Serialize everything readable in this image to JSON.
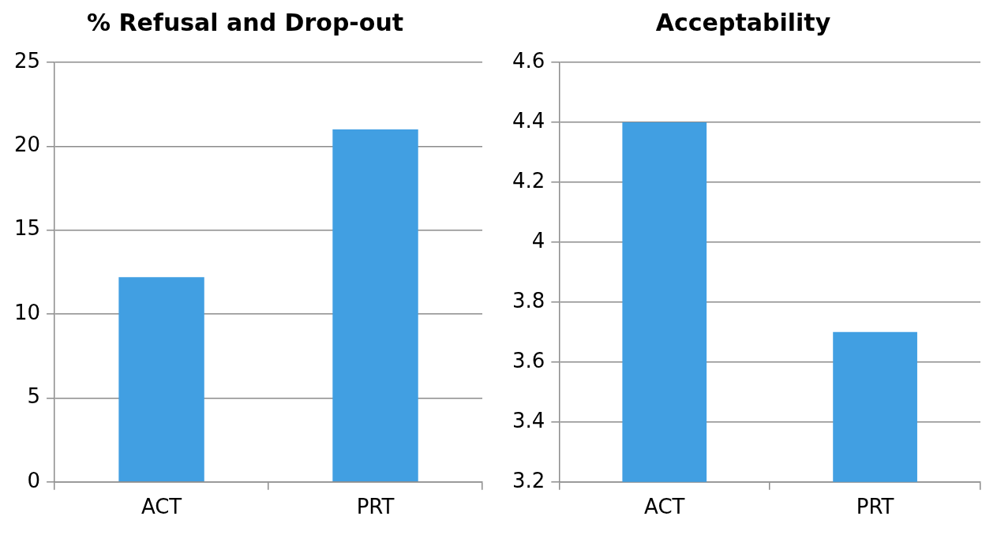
{
  "chart_data": [
    {
      "type": "bar",
      "title": "% Refusal and Drop-out",
      "categories": [
        "ACT",
        "PRT"
      ],
      "values": [
        12.2,
        21
      ],
      "color": "#419fe2",
      "ylim": [
        0,
        25
      ],
      "yticks": [
        0,
        5,
        10,
        15,
        20,
        25
      ],
      "grid": "y"
    },
    {
      "type": "bar",
      "title": "Acceptability",
      "categories": [
        "ACT",
        "PRT"
      ],
      "values": [
        4.4,
        3.7
      ],
      "color": "#419fe2",
      "ylim": [
        3.2,
        4.6
      ],
      "yticks": [
        3.2,
        3.4,
        3.6,
        3.8,
        4,
        4.2,
        4.4,
        4.6
      ],
      "grid": "y"
    }
  ]
}
